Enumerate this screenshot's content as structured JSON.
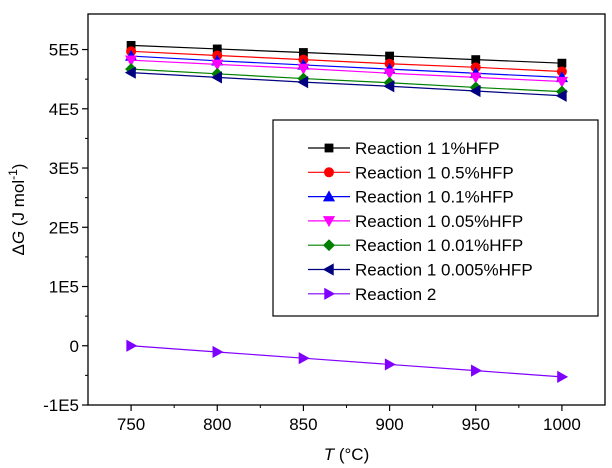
{
  "chart_data": {
    "type": "line",
    "x": [
      750,
      800,
      850,
      900,
      950,
      1000
    ],
    "xlim": [
      725,
      1025
    ],
    "ylim": [
      -100000,
      560000
    ],
    "xticks": [
      750,
      800,
      850,
      900,
      950,
      1000
    ],
    "xtick_labels": [
      "750",
      "800",
      "850",
      "900",
      "950",
      "1000"
    ],
    "yticks": [
      -100000,
      0,
      100000,
      200000,
      300000,
      400000,
      500000
    ],
    "ytick_labels": [
      "-1E5",
      "0",
      "1E5",
      "2E5",
      "3E5",
      "4E5",
      "5E5"
    ],
    "xlabel": {
      "italic": "T",
      "unit": " (°C)"
    },
    "ylabel": {
      "prefix": "Δ",
      "italic": "G",
      "unit": " (J mol",
      "sup": "-1",
      "close": ")"
    },
    "grid": false,
    "legend_position": "right-center",
    "series": [
      {
        "name": "Reaction 1 1%HFP",
        "color": "#000000",
        "marker": "square",
        "values": [
          507000,
          501000,
          495000,
          489000,
          483000,
          477000
        ]
      },
      {
        "name": "Reaction 1 0.5%HFP",
        "color": "#ff0000",
        "marker": "circle",
        "values": [
          497000,
          490000,
          483000,
          476000,
          470000,
          463000
        ]
      },
      {
        "name": "Reaction 1 0.1%HFP",
        "color": "#0000ff",
        "marker": "triangle-up",
        "values": [
          489000,
          481000,
          474000,
          467000,
          460000,
          453000
        ]
      },
      {
        "name": "Reaction 1 0.05%HFP",
        "color": "#ff00ff",
        "marker": "triangle-down",
        "values": [
          482000,
          475000,
          468000,
          460000,
          453000,
          446000
        ]
      },
      {
        "name": "Reaction 1 0.01%HFP",
        "color": "#008000",
        "marker": "diamond",
        "values": [
          467000,
          459000,
          451000,
          444000,
          436000,
          429000
        ]
      },
      {
        "name": "Reaction 1 0.005%HFP",
        "color": "#000080",
        "marker": "triangle-left",
        "values": [
          461000,
          453000,
          445000,
          438000,
          430000,
          422000
        ]
      },
      {
        "name": "Reaction 2",
        "color": "#8000ff",
        "marker": "triangle-right",
        "values": [
          0,
          -10500,
          -21000,
          -31500,
          -42000,
          -52500
        ]
      }
    ]
  }
}
